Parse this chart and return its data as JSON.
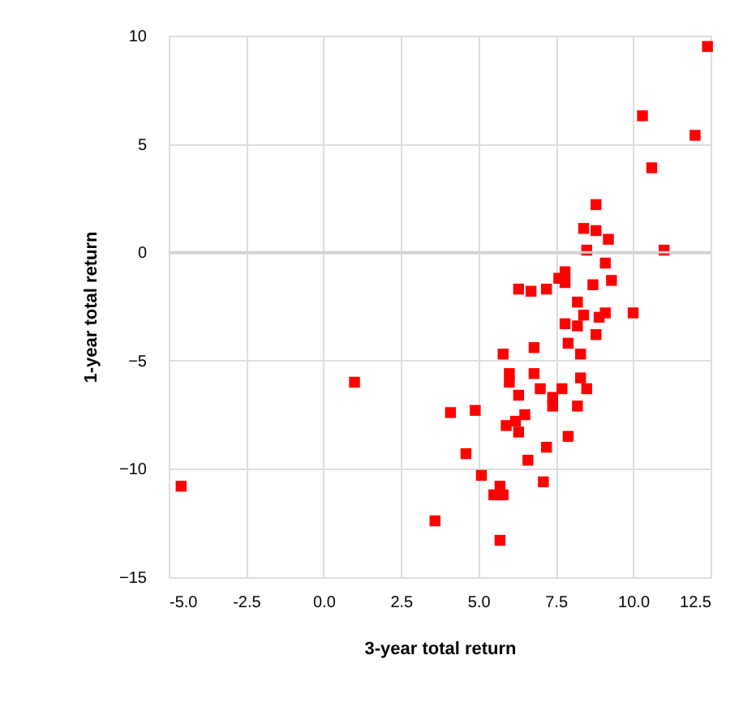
{
  "chart_data": {
    "type": "scatter",
    "xlabel": "3-year total return",
    "ylabel": "1-year total return",
    "xlim": [
      -5,
      12.5
    ],
    "ylim": [
      -15,
      10
    ],
    "xticks": [
      {
        "value": -5,
        "label": "-5.0"
      },
      {
        "value": -2.5,
        "label": "-2.5"
      },
      {
        "value": 0,
        "label": "0.0"
      },
      {
        "value": 2.5,
        "label": "2.5"
      },
      {
        "value": 5,
        "label": "5.0"
      },
      {
        "value": 7.5,
        "label": "7.5"
      },
      {
        "value": 10,
        "label": "10.0"
      },
      {
        "value": 12.5,
        "label": "12.5"
      }
    ],
    "yticks": [
      -15,
      -10,
      -5,
      0,
      5,
      10
    ],
    "grid": true,
    "marker": "square",
    "legend": false,
    "ref_lines": [
      {
        "axis": "y",
        "value": 0,
        "color": "#d0d0d0"
      }
    ],
    "series": [
      {
        "color": "#ff0000",
        "x": [
          12.4,
          10.3,
          12.0,
          10.6,
          8.8,
          8.4,
          8.8,
          9.2,
          8.5,
          11.0,
          9.1,
          7.8,
          7.6,
          7.8,
          9.3,
          8.7,
          6.3,
          6.7,
          7.2,
          8.2,
          8.4,
          8.9,
          9.1,
          10.0,
          7.8,
          8.2,
          8.8,
          7.9,
          8.3,
          6.8,
          5.8,
          6.0,
          6.0,
          6.8,
          8.3,
          7.0,
          7.7,
          8.5,
          6.3,
          7.4,
          7.4,
          8.2,
          1.0,
          4.1,
          4.9,
          6.5,
          6.2,
          5.9,
          6.3,
          7.9,
          7.2,
          6.6,
          4.6,
          5.1,
          7.1,
          5.7,
          5.5,
          5.8,
          -4.6,
          3.6,
          5.7
        ],
        "values": [
          9.5,
          6.3,
          5.4,
          3.9,
          2.2,
          1.1,
          1.0,
          0.6,
          0.1,
          0.1,
          -0.5,
          -0.9,
          -1.2,
          -1.4,
          -1.3,
          -1.5,
          -1.7,
          -1.8,
          -1.7,
          -2.3,
          -2.9,
          -3.0,
          -2.8,
          -2.8,
          -3.3,
          -3.4,
          -3.8,
          -4.2,
          -4.7,
          -4.4,
          -4.7,
          -5.6,
          -6.0,
          -5.6,
          -5.8,
          -6.3,
          -6.3,
          -6.3,
          -6.6,
          -6.7,
          -7.1,
          -7.1,
          -6.0,
          -7.4,
          -7.3,
          -7.5,
          -7.8,
          -8.0,
          -8.3,
          -8.5,
          -9.0,
          -9.6,
          -9.3,
          -10.3,
          -10.6,
          -10.8,
          -11.2,
          -11.2,
          -10.8,
          -12.4,
          -13.3
        ]
      }
    ]
  }
}
